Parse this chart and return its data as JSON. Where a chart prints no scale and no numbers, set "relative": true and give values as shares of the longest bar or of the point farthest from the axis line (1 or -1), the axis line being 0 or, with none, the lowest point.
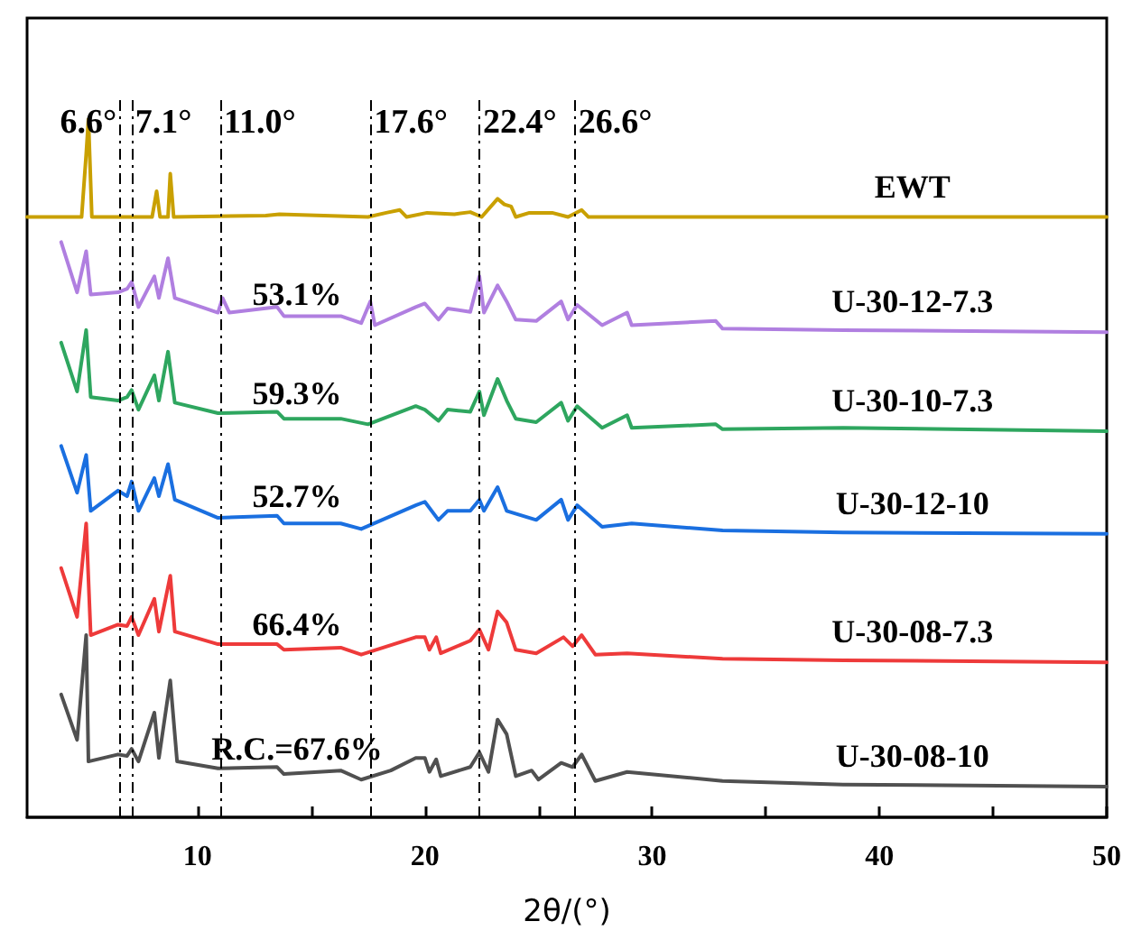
{
  "chart_data": {
    "type": "line",
    "relative": true,
    "xlabel": "2θ/(°)",
    "xlim": [
      2.5,
      50
    ],
    "xticks": [
      10,
      {
        "value": 15,
        "label": null
      },
      20,
      {
        "value": 25,
        "label": null
      },
      30,
      {
        "value": 35,
        "label": null
      },
      40,
      {
        "value": 45,
        "label": null
      },
      50
    ],
    "tick_labels": "x",
    "grid": false,
    "legend": false,
    "marker": "none",
    "line_style": "solid",
    "series": [
      {
        "name": "EWT",
        "color": "#c9a000",
        "x": [
          2.5,
          4.9,
          5.1,
          5.2,
          5.35,
          8.0,
          8.2,
          8.35,
          8.7,
          8.8,
          8.95,
          13.0,
          13.6,
          17.5,
          18.3,
          18.9,
          19.2,
          20.1,
          21.3,
          22.0,
          22.5,
          23.2,
          23.5,
          23.8,
          24.0,
          24.6,
          25.6,
          26.3,
          26.9,
          27.2,
          50
        ],
        "values": [
          0.86,
          0.86,
          0.95,
          1.0,
          0.86,
          0.86,
          0.897,
          0.86,
          0.86,
          0.922,
          0.86,
          0.862,
          0.864,
          0.86,
          0.866,
          0.87,
          0.86,
          0.866,
          0.864,
          0.867,
          0.86,
          0.886,
          0.878,
          0.875,
          0.86,
          0.866,
          0.866,
          0.86,
          0.87,
          0.86,
          0.86
        ]
      },
      {
        "name": "U-30-12-7.3",
        "color": "#b07fe0",
        "x": [
          4.0,
          4.7,
          5.1,
          5.3,
          6.5,
          6.9,
          7.1,
          7.4,
          8.1,
          8.3,
          8.7,
          9.0,
          10.9,
          11.1,
          11.4,
          13.5,
          13.8,
          16.3,
          17.2,
          17.6,
          17.8,
          19.6,
          20.0,
          20.6,
          21.0,
          22.0,
          22.4,
          22.6,
          23.2,
          23.6,
          24.0,
          24.9,
          26.0,
          26.3,
          26.7,
          27.8,
          28.9,
          29.1,
          32.8,
          33.1,
          38.4,
          50
        ],
        "values": [
          0.824,
          0.752,
          0.811,
          0.749,
          0.752,
          0.757,
          0.767,
          0.731,
          0.775,
          0.744,
          0.801,
          0.744,
          0.723,
          0.744,
          0.723,
          0.731,
          0.718,
          0.718,
          0.708,
          0.739,
          0.705,
          0.731,
          0.736,
          0.713,
          0.729,
          0.724,
          0.775,
          0.723,
          0.762,
          0.739,
          0.713,
          0.711,
          0.739,
          0.713,
          0.734,
          0.705,
          0.723,
          0.705,
          0.711,
          0.7,
          0.698,
          0.695
        ]
      },
      {
        "name": "U-30-10-7.3",
        "color": "#2ea65f",
        "x": [
          4.0,
          4.7,
          5.1,
          5.3,
          6.5,
          6.9,
          7.1,
          7.4,
          8.1,
          8.3,
          8.7,
          9.0,
          10.9,
          13.5,
          13.8,
          16.3,
          17.5,
          19.6,
          20.0,
          20.6,
          21.0,
          22.0,
          22.4,
          22.6,
          23.2,
          23.6,
          24.0,
          24.9,
          26.0,
          26.3,
          26.7,
          27.8,
          28.9,
          29.1,
          32.8,
          33.1,
          38.4,
          50
        ],
        "values": [
          0.68,
          0.61,
          0.698,
          0.602,
          0.597,
          0.602,
          0.612,
          0.584,
          0.633,
          0.597,
          0.667,
          0.594,
          0.579,
          0.581,
          0.571,
          0.571,
          0.563,
          0.589,
          0.584,
          0.568,
          0.584,
          0.581,
          0.61,
          0.576,
          0.628,
          0.597,
          0.571,
          0.566,
          0.594,
          0.568,
          0.589,
          0.558,
          0.576,
          0.558,
          0.563,
          0.556,
          0.558,
          0.553
        ]
      },
      {
        "name": "U-30-12-10",
        "color": "#1a6fe0",
        "x": [
          4.0,
          4.7,
          5.1,
          5.3,
          6.5,
          6.9,
          7.1,
          7.4,
          8.1,
          8.3,
          8.7,
          9.0,
          10.9,
          13.5,
          13.8,
          16.3,
          17.2,
          19.6,
          20.0,
          20.6,
          21.0,
          22.0,
          22.4,
          22.6,
          23.2,
          23.6,
          24.9,
          26.0,
          26.3,
          26.7,
          27.8,
          29.1,
          33.1,
          38.4,
          50
        ],
        "values": [
          0.532,
          0.465,
          0.519,
          0.439,
          0.468,
          0.46,
          0.481,
          0.439,
          0.486,
          0.46,
          0.506,
          0.455,
          0.429,
          0.432,
          0.421,
          0.421,
          0.413,
          0.447,
          0.452,
          0.426,
          0.439,
          0.439,
          0.455,
          0.439,
          0.473,
          0.439,
          0.426,
          0.455,
          0.426,
          0.447,
          0.416,
          0.421,
          0.411,
          0.408,
          0.406
        ]
      },
      {
        "name": "U-30-08-7.3",
        "color": "#ee3a3a",
        "x": [
          4.0,
          4.7,
          5.1,
          5.3,
          6.5,
          6.9,
          7.1,
          7.4,
          8.1,
          8.3,
          8.8,
          9.0,
          10.9,
          13.5,
          13.8,
          16.3,
          17.2,
          19.6,
          20.0,
          20.2,
          20.5,
          20.7,
          22.0,
          22.4,
          22.8,
          23.2,
          23.6,
          24.0,
          24.9,
          26.1,
          26.5,
          26.9,
          27.5,
          28.9,
          33.1,
          38.4,
          50
        ],
        "values": [
          0.357,
          0.287,
          0.421,
          0.261,
          0.276,
          0.274,
          0.287,
          0.261,
          0.313,
          0.266,
          0.346,
          0.266,
          0.248,
          0.248,
          0.24,
          0.243,
          0.233,
          0.258,
          0.258,
          0.24,
          0.258,
          0.235,
          0.253,
          0.269,
          0.24,
          0.295,
          0.279,
          0.24,
          0.235,
          0.258,
          0.245,
          0.261,
          0.233,
          0.235,
          0.227,
          0.225,
          0.222
        ]
      },
      {
        "name": "U-30-08-10",
        "color": "#505050",
        "x": [
          4.0,
          4.7,
          5.1,
          5.2,
          6.5,
          6.9,
          7.1,
          7.4,
          8.1,
          8.3,
          8.8,
          9.1,
          10.9,
          13.5,
          13.8,
          16.3,
          17.2,
          18.5,
          19.6,
          20.0,
          20.2,
          20.5,
          20.7,
          22.0,
          22.4,
          22.8,
          23.2,
          23.6,
          24.0,
          24.7,
          25.0,
          26.0,
          26.5,
          26.9,
          27.5,
          28.9,
          33.1,
          38.4,
          50
        ],
        "values": [
          0.176,
          0.111,
          0.261,
          0.08,
          0.09,
          0.088,
          0.098,
          0.08,
          0.15,
          0.085,
          0.196,
          0.08,
          0.07,
          0.072,
          0.062,
          0.067,
          0.054,
          0.067,
          0.085,
          0.085,
          0.065,
          0.083,
          0.059,
          0.072,
          0.093,
          0.065,
          0.14,
          0.119,
          0.059,
          0.067,
          0.054,
          0.078,
          0.072,
          0.09,
          0.052,
          0.065,
          0.052,
          0.047,
          0.044
        ]
      }
    ],
    "ref_lines": [
      {
        "axis": "x",
        "value": 6.6,
        "label": "6.6°",
        "color": "#000000",
        "line_style": "dashed"
      },
      {
        "axis": "x",
        "value": 7.1,
        "label": "7.1°",
        "color": "#000000",
        "line_style": "dashed"
      },
      {
        "axis": "x",
        "value": 11.0,
        "label": "11.0°",
        "color": "#000000",
        "line_style": "dashed"
      },
      {
        "axis": "x",
        "value": 17.6,
        "label": "17.6°",
        "color": "#000000",
        "line_style": "dashed"
      },
      {
        "axis": "x",
        "value": 22.4,
        "label": "22.4°",
        "color": "#000000",
        "line_style": "dashed"
      },
      {
        "axis": "x",
        "value": 26.6,
        "label": "26.6°",
        "color": "#000000",
        "line_style": "dashed"
      }
    ],
    "annotations": [
      "53.1%",
      "59.3%",
      "52.7%",
      "66.4%",
      "R.C.=67.6%"
    ]
  }
}
